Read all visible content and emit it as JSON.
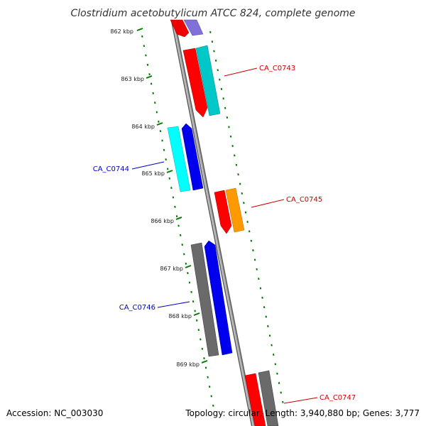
{
  "title": "Clostridium acetobutylicum ATCC 824, complete genome",
  "accession": "Accession: NC_003030",
  "summary": "Topology: circular; Length: 3,940,880 bp; Genes: 3,777",
  "kbp_labels": [
    "862 kbp",
    "863 kbp",
    "864 kbp",
    "865 kbp",
    "866 kbp",
    "867 kbp",
    "868 kbp",
    "869 kbp"
  ],
  "gene_labels": [
    {
      "text": "CA_C0743",
      "color": "#cc0000"
    },
    {
      "text": "CA_C0744",
      "color": "#0000cc"
    },
    {
      "text": "CA_C0745",
      "color": "#cc0000"
    },
    {
      "text": "CA_C0746",
      "color": "#0000cc"
    },
    {
      "text": "CA_C0747",
      "color": "#cc0000"
    }
  ],
  "colors": {
    "backbone": "#8a8a8a",
    "tick": "#007a00",
    "red": "#ff0000",
    "purple": "#8070d8",
    "cyan": "#00c8c8",
    "light_cyan": "#00ffff",
    "blue": "#0000ee",
    "orange": "#ff9900",
    "gray": "#6a6a6a"
  }
}
